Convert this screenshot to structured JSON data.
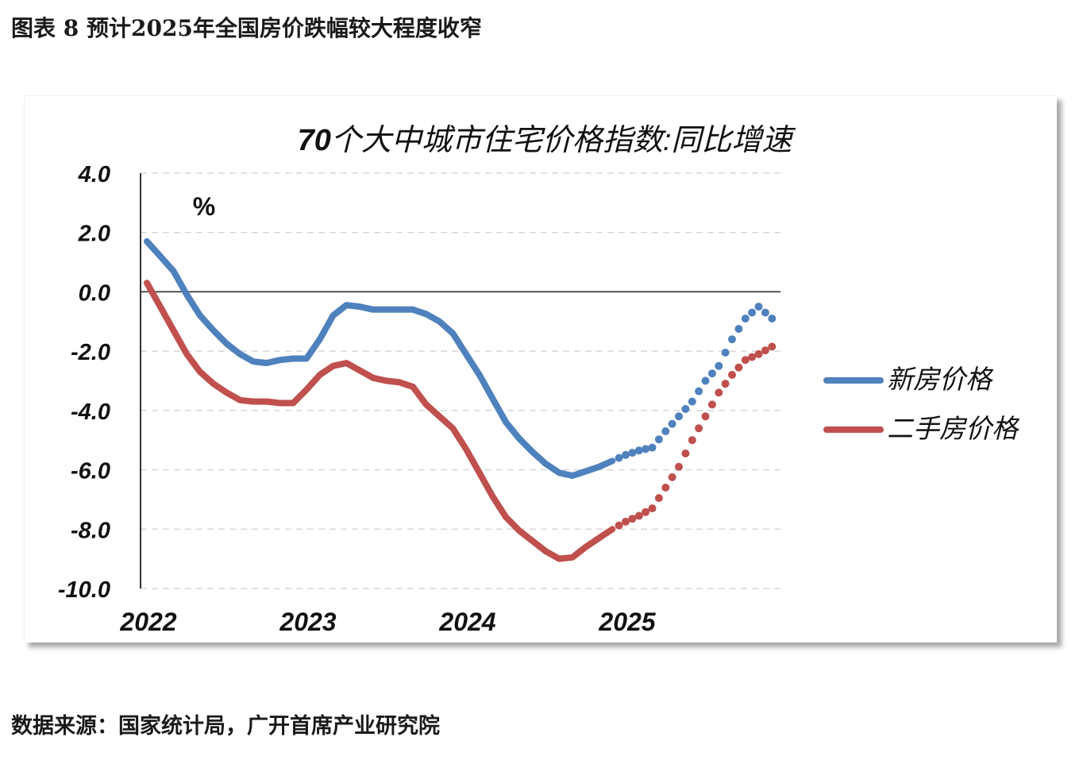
{
  "figure": {
    "title": "图表 8 预计2025年全国房价跌幅较大程度收窄",
    "source": "数据来源：国家统计局，广开首席产业研究院"
  },
  "chart_data": {
    "type": "line",
    "title_num": "70",
    "title_text": "个大中城市住宅价格指数:同比增速",
    "title": "70个大中城市住宅价格指数:同比增速",
    "unit_label": "%",
    "xlabel": "",
    "ylabel": "%",
    "x_unit": "month index from Jan 2022",
    "x_ticks": [
      {
        "label": "2022",
        "month": 0
      },
      {
        "label": "2023",
        "month": 12
      },
      {
        "label": "2024",
        "month": 24
      },
      {
        "label": "2025",
        "month": 36
      }
    ],
    "xlim": [
      0,
      47.5
    ],
    "ylim": [
      -10,
      4
    ],
    "y_ticks": [
      {
        "value": 4,
        "label": "4.0"
      },
      {
        "value": 2,
        "label": "2.0"
      },
      {
        "value": 0,
        "label": "0.0"
      },
      {
        "value": -2,
        "label": "-2.0"
      },
      {
        "value": -4,
        "label": "-4.0"
      },
      {
        "value": -6,
        "label": "-6.0"
      },
      {
        "value": -8,
        "label": "-8.0"
      },
      {
        "value": -10,
        "label": "-10.0"
      }
    ],
    "grid": true,
    "legend_position": "right",
    "series": [
      {
        "name": "新房价格",
        "color": "#4f81bd",
        "actual_start_month": 0,
        "actual": [
          1.7,
          1.2,
          0.7,
          -0.1,
          -0.8,
          -1.3,
          -1.75,
          -2.1,
          -2.35,
          -2.4,
          -2.3,
          -2.25,
          -2.25,
          -1.6,
          -0.8,
          -0.45,
          -0.5,
          -0.6,
          -0.6,
          -0.6,
          -0.6,
          -0.75,
          -1.0,
          -1.4,
          -2.1,
          -2.8,
          -3.6,
          -4.4,
          -4.95,
          -5.4,
          -5.8,
          -6.1,
          -6.2,
          -6.05,
          -5.9,
          -5.7
        ],
        "forecast_start_month": 35,
        "forecast": [
          -5.7,
          -5.5,
          -5.35,
          -5.25,
          -4.7,
          -4.2,
          -3.7,
          -3.0,
          -2.5,
          -1.6,
          -0.9,
          -0.5,
          -0.9
        ]
      },
      {
        "name": "二手房价格",
        "color": "#c0504d",
        "actual_start_month": 0,
        "actual": [
          0.3,
          -0.5,
          -1.3,
          -2.1,
          -2.7,
          -3.1,
          -3.4,
          -3.65,
          -3.7,
          -3.7,
          -3.75,
          -3.75,
          -3.3,
          -2.8,
          -2.5,
          -2.4,
          -2.65,
          -2.9,
          -3.0,
          -3.05,
          -3.2,
          -3.8,
          -4.2,
          -4.6,
          -5.3,
          -6.1,
          -6.9,
          -7.6,
          -8.05,
          -8.4,
          -8.75,
          -9.0,
          -8.95,
          -8.6,
          -8.3,
          -8.0
        ],
        "forecast_start_month": 35,
        "forecast": [
          -8.0,
          -7.75,
          -7.55,
          -7.3,
          -6.6,
          -5.9,
          -5.0,
          -4.2,
          -3.4,
          -2.8,
          -2.3,
          -2.1,
          -1.85
        ]
      }
    ]
  }
}
